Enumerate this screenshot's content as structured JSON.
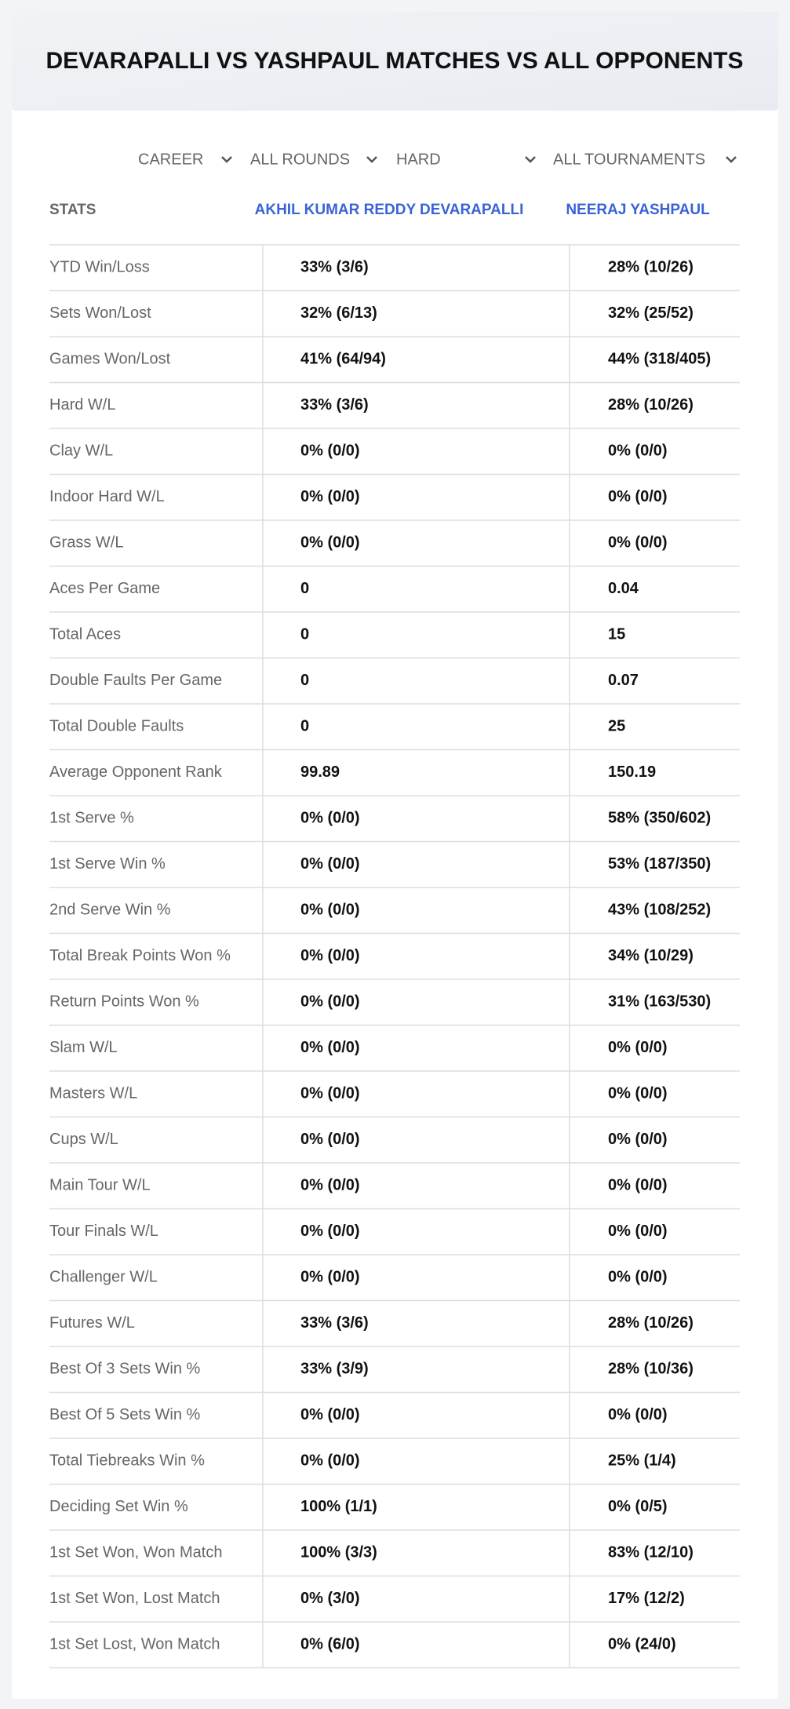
{
  "title": "DEVARAPALLI VS YASHPAUL MATCHES VS ALL OPPONENTS",
  "filters": [
    "CAREER",
    "ALL ROUNDS",
    "HARD",
    "ALL TOURNAMENTS"
  ],
  "table": {
    "headers": [
      "STATS",
      "AKHIL KUMAR REDDY DEVARAPALLI",
      "NEERAJ YASHPAUL"
    ],
    "rows": [
      [
        "YTD Win/Loss",
        "33% (3/6)",
        "28% (10/26)"
      ],
      [
        "Sets Won/Lost",
        "32% (6/13)",
        "32% (25/52)"
      ],
      [
        "Games Won/Lost",
        "41% (64/94)",
        "44% (318/405)"
      ],
      [
        "Hard W/L",
        "33% (3/6)",
        "28% (10/26)"
      ],
      [
        "Clay W/L",
        "0% (0/0)",
        "0% (0/0)"
      ],
      [
        "Indoor Hard W/L",
        "0% (0/0)",
        "0% (0/0)"
      ],
      [
        "Grass W/L",
        "0% (0/0)",
        "0% (0/0)"
      ],
      [
        "Aces Per Game",
        "0",
        "0.04"
      ],
      [
        "Total Aces",
        "0",
        "15"
      ],
      [
        "Double Faults Per Game",
        "0",
        "0.07"
      ],
      [
        "Total Double Faults",
        "0",
        "25"
      ],
      [
        "Average Opponent Rank",
        "99.89",
        "150.19"
      ],
      [
        "1st Serve %",
        "0% (0/0)",
        "58% (350/602)"
      ],
      [
        "1st Serve Win %",
        "0% (0/0)",
        "53% (187/350)"
      ],
      [
        "2nd Serve Win %",
        "0% (0/0)",
        "43% (108/252)"
      ],
      [
        "Total Break Points Won %",
        "0% (0/0)",
        "34% (10/29)"
      ],
      [
        "Return Points Won %",
        "0% (0/0)",
        "31% (163/530)"
      ],
      [
        "Slam W/L",
        "0% (0/0)",
        "0% (0/0)"
      ],
      [
        "Masters W/L",
        "0% (0/0)",
        "0% (0/0)"
      ],
      [
        "Cups W/L",
        "0% (0/0)",
        "0% (0/0)"
      ],
      [
        "Main Tour W/L",
        "0% (0/0)",
        "0% (0/0)"
      ],
      [
        "Tour Finals W/L",
        "0% (0/0)",
        "0% (0/0)"
      ],
      [
        "Challenger W/L",
        "0% (0/0)",
        "0% (0/0)"
      ],
      [
        "Futures W/L",
        "33% (3/6)",
        "28% (10/26)"
      ],
      [
        "Best Of 3 Sets Win %",
        "33% (3/9)",
        "28% (10/36)"
      ],
      [
        "Best Of 5 Sets Win %",
        "0% (0/0)",
        "0% (0/0)"
      ],
      [
        "Total Tiebreaks Win %",
        "0% (0/0)",
        "25% (1/4)"
      ],
      [
        "Deciding Set Win %",
        "100% (1/1)",
        "0% (0/5)"
      ],
      [
        "1st Set Won, Won Match",
        "100% (3/3)",
        "83% (12/10)"
      ],
      [
        "1st Set Won, Lost Match",
        "0% (3/0)",
        "17% (12/2)"
      ],
      [
        "1st Set Lost, Won Match",
        "0% (6/0)",
        "0% (24/0)"
      ]
    ]
  }
}
